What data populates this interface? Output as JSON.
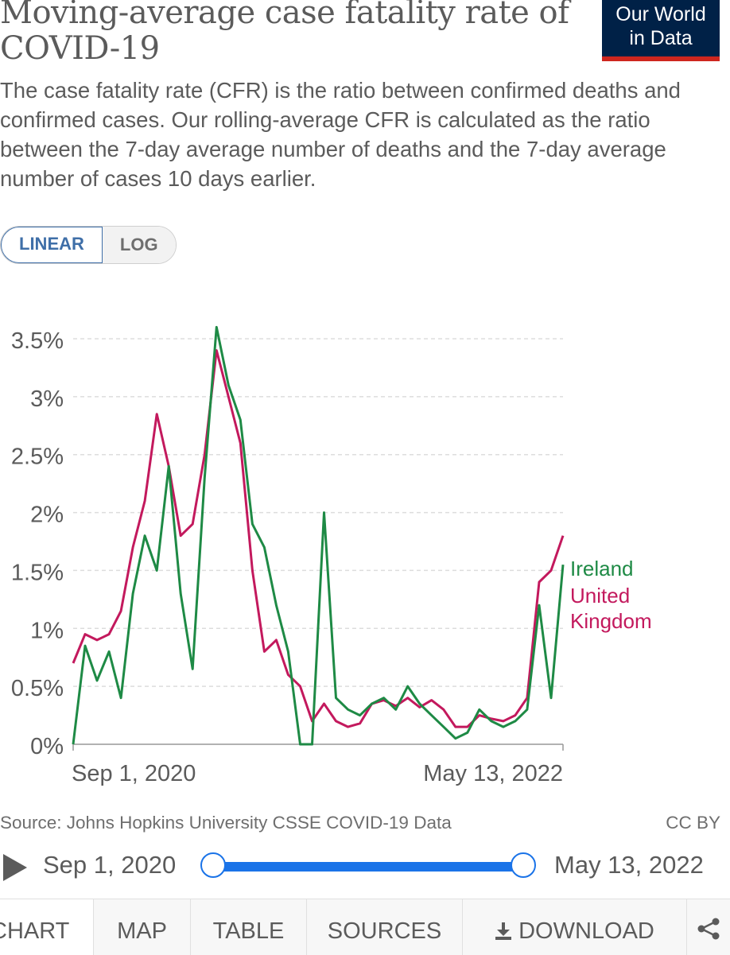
{
  "title": "Moving-average case fatality rate of COVID-19",
  "logo": {
    "line1": "Our World",
    "line2": "in Data"
  },
  "subtitle": "The case fatality rate (CFR) is the ratio between confirmed deaths and confirmed cases. Our rolling-average CFR is calculated as the ratio between the 7-day average number of deaths and the 7-day average number of cases 10 days earlier.",
  "scale": {
    "linear": "LINEAR",
    "log": "LOG",
    "active": "LINEAR"
  },
  "source": "Source: Johns Hopkins University CSSE COVID-19 Data",
  "license": "CC BY",
  "timeline": {
    "start": "Sep 1, 2020",
    "end": "May 13, 2022"
  },
  "tabs": [
    "CHART",
    "MAP",
    "TABLE",
    "SOURCES",
    "DOWNLOAD"
  ],
  "colors": {
    "ireland": "#1e8a45",
    "uk": "#c3195d",
    "grid": "#dddddd",
    "axis": "#5b5b5b"
  },
  "chart_data": {
    "type": "line",
    "title": "",
    "xlabel": "",
    "ylabel": "",
    "ylim": [
      0,
      3.5
    ],
    "y_ticks": [
      0,
      0.5,
      1,
      1.5,
      2,
      2.5,
      3,
      3.5
    ],
    "y_tick_labels": [
      "0%",
      "0.5%",
      "1%",
      "1.5%",
      "2%",
      "2.5%",
      "3%",
      "3.5%"
    ],
    "x_tick_labels": [
      "Sep 1, 2020",
      "May 13, 2022"
    ],
    "grid": true,
    "legend": "end-of-line labels",
    "x": [
      "2020-09-01",
      "2020-09-15",
      "2020-10-01",
      "2020-10-15",
      "2020-11-01",
      "2020-11-15",
      "2020-12-01",
      "2020-12-15",
      "2021-01-01",
      "2021-01-15",
      "2021-02-01",
      "2021-02-15",
      "2021-03-01",
      "2021-03-15",
      "2021-04-01",
      "2021-04-15",
      "2021-05-01",
      "2021-05-15",
      "2021-06-01",
      "2021-06-15",
      "2021-07-01",
      "2021-07-15",
      "2021-08-01",
      "2021-08-15",
      "2021-09-01",
      "2021-09-15",
      "2021-10-01",
      "2021-10-15",
      "2021-11-01",
      "2021-11-15",
      "2021-12-01",
      "2021-12-15",
      "2022-01-01",
      "2022-01-15",
      "2022-02-01",
      "2022-02-15",
      "2022-03-01",
      "2022-03-15",
      "2022-04-01",
      "2022-04-15",
      "2022-05-01",
      "2022-05-13"
    ],
    "series": [
      {
        "name": "Ireland",
        "values": [
          0.0,
          0.85,
          0.55,
          0.8,
          0.4,
          1.3,
          1.8,
          1.5,
          2.4,
          1.3,
          0.65,
          2.3,
          3.6,
          3.1,
          2.8,
          1.9,
          1.7,
          1.2,
          0.8,
          0.0,
          0.0,
          2.0,
          0.4,
          0.3,
          0.25,
          0.35,
          0.4,
          0.3,
          0.5,
          0.35,
          0.25,
          0.15,
          0.05,
          0.1,
          0.3,
          0.2,
          0.15,
          0.2,
          0.3,
          1.2,
          0.4,
          1.55
        ]
      },
      {
        "name": "United Kingdom",
        "values": [
          0.7,
          0.95,
          0.9,
          0.95,
          1.15,
          1.7,
          2.1,
          2.85,
          2.4,
          1.8,
          1.9,
          2.5,
          3.4,
          3.0,
          2.6,
          1.5,
          0.8,
          0.9,
          0.6,
          0.5,
          0.2,
          0.35,
          0.2,
          0.15,
          0.18,
          0.35,
          0.38,
          0.33,
          0.4,
          0.32,
          0.38,
          0.3,
          0.15,
          0.15,
          0.25,
          0.22,
          0.2,
          0.25,
          0.4,
          1.4,
          1.5,
          1.8
        ]
      }
    ]
  }
}
